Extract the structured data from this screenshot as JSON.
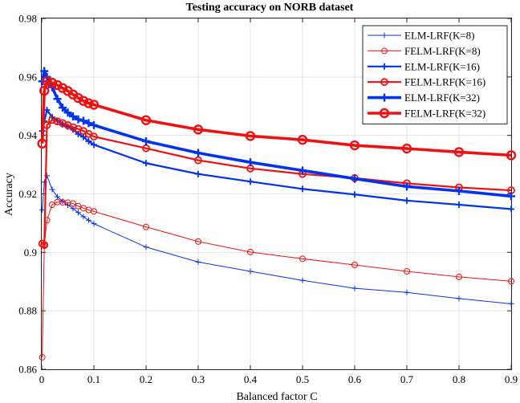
{
  "chart_data": {
    "type": "line",
    "title": "Testing accuracy on NORB dataset",
    "xlabel": "Balanced factor C",
    "ylabel": "Accuracy",
    "xlim": [
      0,
      0.9
    ],
    "ylim": [
      0.86,
      0.98
    ],
    "xticks": [
      0,
      0.1,
      0.2,
      0.3,
      0.4,
      0.5,
      0.6,
      0.7,
      0.8,
      0.9
    ],
    "xtick_labels": [
      "0",
      "0.1",
      "0.2",
      "0.3",
      "0.4",
      "0.5",
      "0.6",
      "0.7",
      "0.8",
      "0.9"
    ],
    "yticks": [
      0.86,
      0.88,
      0.9,
      0.92,
      0.94,
      0.96,
      0.98
    ],
    "ytick_labels": [
      "0.86",
      "0.88",
      "0.9",
      "0.92",
      "0.94",
      "0.96",
      "0.98"
    ],
    "grid": true,
    "legend_position": "top-right",
    "x": [
      0.001,
      0.005,
      0.01,
      0.02,
      0.03,
      0.04,
      0.05,
      0.06,
      0.07,
      0.08,
      0.09,
      0.1,
      0.2,
      0.3,
      0.4,
      0.5,
      0.6,
      0.7,
      0.8,
      0.9
    ],
    "series": [
      {
        "name": "ELM-LRF(K=8)",
        "color": "#0033ee",
        "marker": "plus",
        "weight": "thin",
        "values": [
          0.9145,
          0.924,
          0.9262,
          0.9215,
          0.919,
          0.9175,
          0.9162,
          0.915,
          0.9136,
          0.9122,
          0.911,
          0.9098,
          0.9018,
          0.8967,
          0.8935,
          0.8904,
          0.8877,
          0.8863,
          0.8842,
          0.8824
        ]
      },
      {
        "name": "FELM-LRF(K=8)",
        "color": "#ee1111",
        "marker": "circle",
        "weight": "thin",
        "values": [
          0.8641,
          0.9027,
          0.911,
          0.9163,
          0.9172,
          0.9171,
          0.917,
          0.9167,
          0.9158,
          0.9151,
          0.9145,
          0.914,
          0.9087,
          0.9037,
          0.9001,
          0.8978,
          0.8957,
          0.8935,
          0.8916,
          0.8901
        ]
      },
      {
        "name": "ELM-LRF(K=16)",
        "color": "#0033ee",
        "marker": "plus",
        "weight": "medium",
        "values": [
          0.9415,
          0.9448,
          0.9487,
          0.9462,
          0.945,
          0.9438,
          0.943,
          0.942,
          0.9405,
          0.9395,
          0.938,
          0.9368,
          0.9305,
          0.9268,
          0.9242,
          0.9217,
          0.9198,
          0.9177,
          0.9163,
          0.9148
        ]
      },
      {
        "name": "FELM-LRF(K=16)",
        "color": "#ee1111",
        "marker": "circle",
        "weight": "medium",
        "values": [
          0.903,
          0.9025,
          0.9435,
          0.9453,
          0.9448,
          0.9442,
          0.9435,
          0.9428,
          0.9422,
          0.9415,
          0.9405,
          0.9396,
          0.9356,
          0.9315,
          0.9287,
          0.9268,
          0.9254,
          0.9236,
          0.9222,
          0.9212
        ]
      },
      {
        "name": "ELM-LRF(K=32)",
        "color": "#0033ee",
        "marker": "plus",
        "weight": "thick",
        "values": [
          0.9585,
          0.962,
          0.96,
          0.9565,
          0.9525,
          0.9495,
          0.9478,
          0.9465,
          0.9455,
          0.945,
          0.9442,
          0.9435,
          0.938,
          0.934,
          0.9308,
          0.928,
          0.9252,
          0.9225,
          0.921,
          0.9192
        ]
      },
      {
        "name": "FELM-LRF(K=32)",
        "color": "#ee1111",
        "marker": "circle",
        "weight": "thick",
        "values": [
          0.9372,
          0.9553,
          0.9585,
          0.958,
          0.9572,
          0.9562,
          0.9552,
          0.954,
          0.9528,
          0.9518,
          0.951,
          0.9505,
          0.9452,
          0.942,
          0.9398,
          0.9385,
          0.9366,
          0.9355,
          0.9343,
          0.9332
        ]
      }
    ]
  }
}
